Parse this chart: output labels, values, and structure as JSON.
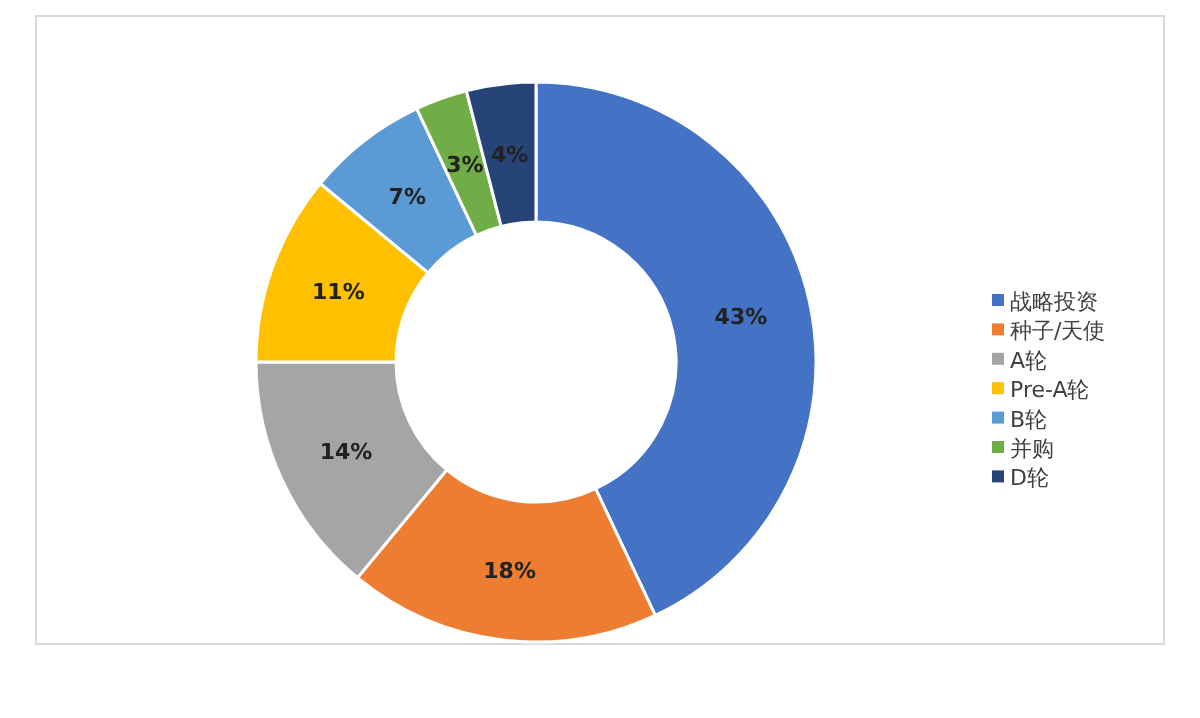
{
  "chart_data": {
    "type": "donut",
    "categories": [
      "战略投资",
      "种子/天使",
      "A轮",
      "Pre-A轮",
      "B轮",
      "并购",
      "D轮"
    ],
    "values": [
      43,
      18,
      14,
      11,
      7,
      3,
      4
    ],
    "colors": [
      "#4472c4",
      "#ed7d31",
      "#a5a5a5",
      "#ffc000",
      "#5b9bd5",
      "#70ad47",
      "#264478"
    ],
    "value_labels": [
      "43%",
      "18%",
      "14%",
      "11%",
      "7%",
      "3%",
      "4%"
    ],
    "legend": "right"
  }
}
